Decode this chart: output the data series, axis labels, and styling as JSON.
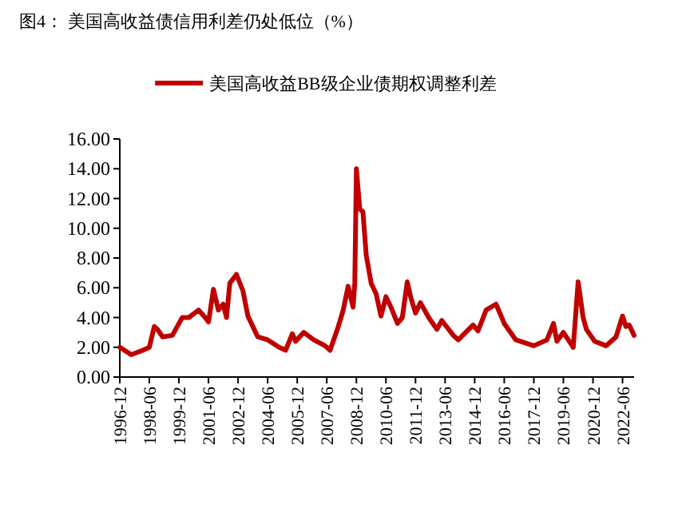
{
  "chart_data": {
    "type": "line",
    "title": "图4：  美国高收益债信用利差仍处低位（%）",
    "x": [
      "1996-12",
      "1997-07",
      "1998-02",
      "1998-06",
      "1998-09",
      "1998-11",
      "1999-02",
      "1999-08",
      "2000-02",
      "2000-06",
      "2000-12",
      "2001-04",
      "2001-06",
      "2001-09",
      "2001-12",
      "2002-03",
      "2002-05",
      "2002-07",
      "2002-11",
      "2003-03",
      "2003-06",
      "2003-12",
      "2004-06",
      "2005-01",
      "2005-05",
      "2005-09",
      "2005-11",
      "2006-04",
      "2006-10",
      "2007-05",
      "2007-08",
      "2008-01",
      "2008-04",
      "2008-07",
      "2008-10",
      "2008-11",
      "2008-12",
      "2009-02",
      "2009-04",
      "2009-06",
      "2009-09",
      "2009-12",
      "2010-03",
      "2010-06",
      "2010-09",
      "2011-01",
      "2011-04",
      "2011-07",
      "2011-09",
      "2011-12",
      "2012-03",
      "2012-08",
      "2013-01",
      "2013-04",
      "2013-11",
      "2014-02",
      "2014-11",
      "2015-02",
      "2015-07",
      "2016-01",
      "2016-06",
      "2017-01",
      "2017-12",
      "2018-08",
      "2018-12",
      "2019-02",
      "2019-06",
      "2019-12",
      "2020-03",
      "2020-06",
      "2020-08",
      "2021-01",
      "2021-08",
      "2022-02",
      "2022-06",
      "2022-08",
      "2022-10",
      "2023-01"
    ],
    "series": [
      {
        "name": "美国高收益BB级企业债期权调整利差",
        "color": "#c00000",
        "values": [
          2.0,
          1.5,
          1.8,
          2.0,
          3.4,
          3.2,
          2.7,
          2.8,
          4.0,
          4.0,
          4.5,
          4.0,
          3.7,
          5.9,
          4.5,
          4.9,
          4.0,
          6.3,
          6.9,
          5.8,
          4.1,
          2.7,
          2.5,
          2.0,
          1.8,
          2.9,
          2.4,
          3.0,
          2.5,
          2.1,
          1.8,
          3.4,
          4.5,
          6.1,
          4.7,
          6.3,
          14.0,
          11.3,
          11.1,
          8.2,
          6.3,
          5.6,
          4.1,
          5.4,
          4.7,
          3.6,
          4.0,
          6.4,
          5.4,
          4.3,
          5.0,
          4.0,
          3.2,
          3.8,
          2.8,
          2.5,
          3.5,
          3.1,
          4.5,
          4.9,
          3.6,
          2.5,
          2.1,
          2.5,
          3.6,
          2.4,
          3.0,
          2.0,
          6.4,
          4.0,
          3.2,
          2.4,
          2.1,
          2.7,
          4.1,
          3.4,
          3.5,
          2.8
        ]
      }
    ],
    "xlim": [
      "1996-12",
      "2023-01"
    ],
    "xticks": [
      "1996-12",
      "1998-06",
      "1999-12",
      "2001-06",
      "2002-12",
      "2004-06",
      "2005-12",
      "2007-06",
      "2008-12",
      "2010-06",
      "2011-12",
      "2013-06",
      "2014-12",
      "2016-06",
      "2017-12",
      "2019-06",
      "2020-12",
      "2022-06"
    ],
    "ylim": [
      0,
      16
    ],
    "yticks": [
      {
        "value": 0,
        "label": "0.00"
      },
      {
        "value": 2,
        "label": "2.00"
      },
      {
        "value": 4,
        "label": "4.00"
      },
      {
        "value": 6,
        "label": "6.00"
      },
      {
        "value": 8,
        "label": "8.00"
      },
      {
        "value": 10,
        "label": "10.00"
      },
      {
        "value": 12,
        "label": "12.00"
      },
      {
        "value": 14,
        "label": "14.00"
      },
      {
        "value": 16,
        "label": "16.00"
      }
    ],
    "legend": "top",
    "grid": false,
    "marker": "none",
    "line_style": "solid"
  }
}
